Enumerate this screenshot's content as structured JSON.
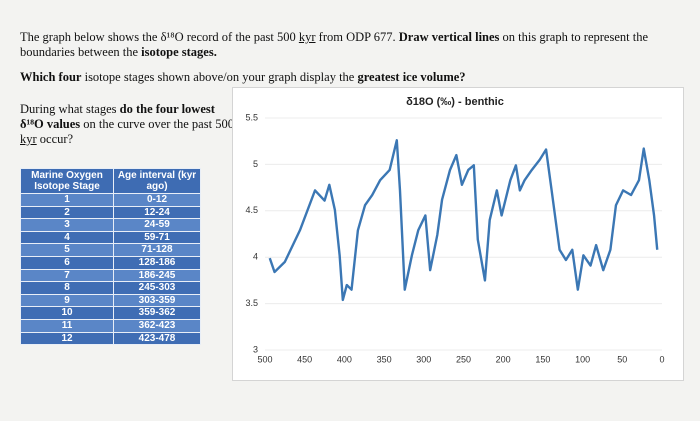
{
  "intro": [
    "The graph below shows the δ¹⁸O record of the past 500 ",
    "kyr",
    " from ODP 677. ",
    "Draw vertical lines",
    " on this graph to represent the boundaries between the ",
    "isotope stages."
  ],
  "question1": [
    "Which four",
    " isotope stages shown above/on your graph display the ",
    "greatest ice volume?"
  ],
  "question2": [
    "During what stages ",
    "do the four lowest",
    " ",
    "δ¹⁸O values",
    " on the curve over the past 500 ",
    "kyr",
    " occur?"
  ],
  "table": {
    "header": [
      "Marine Oxygen Isotope Stage",
      "Age interval (kyr ago)"
    ],
    "rows": [
      [
        "1",
        "0-12"
      ],
      [
        "2",
        "12-24"
      ],
      [
        "3",
        "24-59"
      ],
      [
        "4",
        "59-71"
      ],
      [
        "5",
        "71-128"
      ],
      [
        "6",
        "128-186"
      ],
      [
        "7",
        "186-245"
      ],
      [
        "8",
        "245-303"
      ],
      [
        "9",
        "303-359"
      ],
      [
        "10",
        "359-362"
      ],
      [
        "11",
        "362-423"
      ],
      [
        "12",
        "423-478"
      ]
    ]
  },
  "chart_data": {
    "type": "line",
    "title": "δ18O (‰) - benthic",
    "x": [
      494,
      488,
      475,
      456,
      437,
      425,
      419,
      412,
      406,
      402,
      397,
      391,
      383,
      374,
      365,
      355,
      343,
      334,
      330,
      324,
      315,
      307,
      298,
      292,
      283,
      277,
      267,
      259,
      252,
      244,
      237,
      232,
      223,
      217,
      208,
      202,
      191,
      184,
      179,
      173,
      164,
      154,
      146,
      139,
      129,
      121,
      113,
      106,
      99,
      90,
      83,
      74,
      65,
      58,
      49,
      39,
      29,
      23,
      16,
      10,
      6
    ],
    "series": [
      {
        "name": "δ18O",
        "color": "#3b77b4",
        "values": [
          3.99,
          3.84,
          3.95,
          4.29,
          4.72,
          4.61,
          4.78,
          4.51,
          4.02,
          3.54,
          3.7,
          3.65,
          4.29,
          4.56,
          4.67,
          4.83,
          4.94,
          5.26,
          4.72,
          3.65,
          4.02,
          4.29,
          4.45,
          3.86,
          4.24,
          4.62,
          4.94,
          5.1,
          4.78,
          4.94,
          4.99,
          4.19,
          3.75,
          4.4,
          4.72,
          4.45,
          4.83,
          4.99,
          4.72,
          4.83,
          4.94,
          5.05,
          5.16,
          4.72,
          4.08,
          3.97,
          4.08,
          3.65,
          4.02,
          3.91,
          4.13,
          3.86,
          4.08,
          4.56,
          4.72,
          4.67,
          4.83,
          5.17,
          4.83,
          4.45,
          4.08
        ]
      }
    ],
    "xlim": [
      500,
      0
    ],
    "xticks": [
      500,
      450,
      400,
      350,
      300,
      250,
      200,
      150,
      100,
      50,
      0
    ],
    "ylim": [
      3,
      5.5
    ],
    "yticks": [
      3,
      3.5,
      4,
      4.5,
      5,
      5.5
    ],
    "grid": true
  }
}
